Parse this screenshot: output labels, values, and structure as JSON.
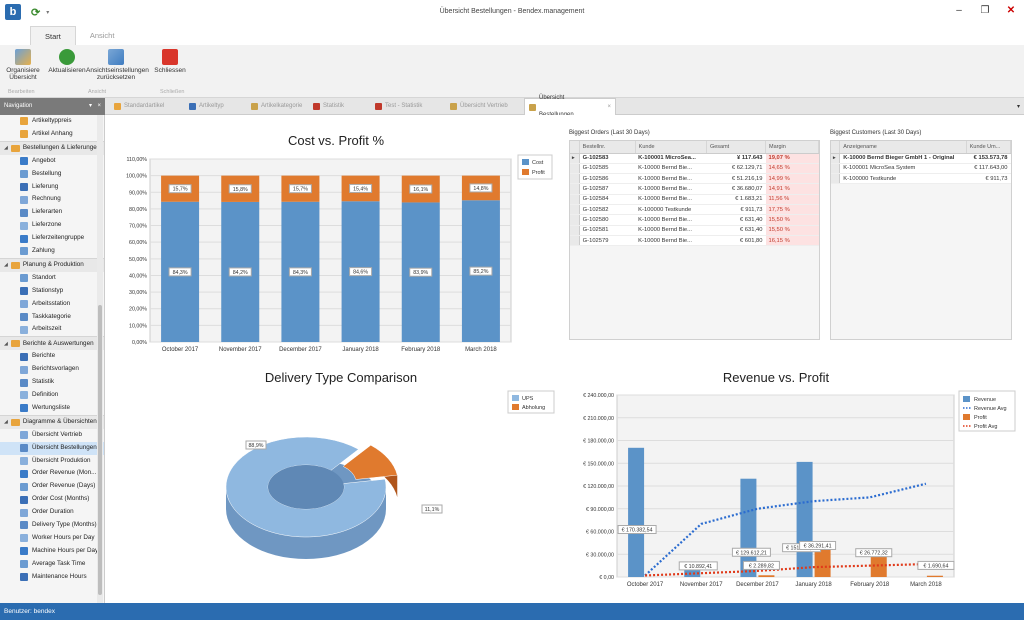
{
  "window": {
    "title": "Übersicht Bestellungen - Bendex.management"
  },
  "ribbon": {
    "tabs": [
      {
        "label": "Start"
      },
      {
        "label": "Ansicht"
      }
    ],
    "buttons": [
      {
        "label": "Organisiere\nÜbersicht"
      },
      {
        "label": "Aktualisieren"
      },
      {
        "label": "Ansichtseinstellungen\nzurücksetzen"
      },
      {
        "label": "Schliessen"
      }
    ],
    "groups": [
      {
        "label": "Bearbeiten"
      },
      {
        "label": "Ansicht"
      },
      {
        "label": "Schließen"
      }
    ]
  },
  "nav": {
    "header": "Navigation",
    "pin": "▾",
    "close": "×",
    "top_items": [
      {
        "label": "Artikeltyppreis"
      },
      {
        "label": "Artikel Anhang"
      }
    ],
    "groups": [
      {
        "label": "Bestellungen & Lieferungen",
        "items": [
          {
            "label": "Angebot"
          },
          {
            "label": "Bestellung"
          },
          {
            "label": "Lieferung"
          },
          {
            "label": "Rechnung"
          },
          {
            "label": "Lieferarten"
          },
          {
            "label": "Lieferzone"
          },
          {
            "label": "Lieferzeitengruppe"
          },
          {
            "label": "Zahlung"
          }
        ]
      },
      {
        "label": "Planung & Produktion",
        "items": [
          {
            "label": "Standort"
          },
          {
            "label": "Stationstyp"
          },
          {
            "label": "Arbeitsstation"
          },
          {
            "label": "Taskkategorie"
          },
          {
            "label": "Arbeitszeit"
          }
        ]
      },
      {
        "label": "Berichte & Auswertungen",
        "items": [
          {
            "label": "Berichte"
          },
          {
            "label": "Berichtsvorlagen"
          },
          {
            "label": "Statistik"
          },
          {
            "label": "Definition"
          },
          {
            "label": "Wertungsliste"
          }
        ]
      },
      {
        "label": "Diagramme & Übersichten",
        "items": [
          {
            "label": "Übersicht Vertrieb"
          },
          {
            "label": "Übersicht Bestellungen",
            "selected": true
          },
          {
            "label": "Übersicht Produktion"
          },
          {
            "label": "Order Revenue (Mon..."
          },
          {
            "label": "Order Revenue (Days)"
          },
          {
            "label": "Order Cost (Months)"
          },
          {
            "label": "Order Duration"
          },
          {
            "label": "Delivery Type (Months)"
          },
          {
            "label": "Worker Hours per Day"
          },
          {
            "label": "Machine Hours per Day"
          },
          {
            "label": "Average Task Time"
          },
          {
            "label": "Maintenance Hours"
          }
        ]
      }
    ]
  },
  "doc_tabs": [
    {
      "label": "Standardartikel",
      "color": "#e8a43c"
    },
    {
      "label": "Artikeltyp",
      "color": "#3b6fb6"
    },
    {
      "label": "Artikelkategorie",
      "color": "#c9a24b"
    },
    {
      "label": "Statistik",
      "color": "#c0392b"
    },
    {
      "label": "Test - Statistik",
      "color": "#c0392b"
    },
    {
      "label": "Übersicht Vertrieb",
      "color": "#c9a24b"
    },
    {
      "label": "Übersicht Bestellungen",
      "color": "#c9a24b",
      "active": true,
      "close": "×"
    }
  ],
  "status": {
    "user": "Benutzer: bendex"
  },
  "chart_data": [
    {
      "type": "bar",
      "title": "Cost vs. Profit %",
      "categories": [
        "October 2017",
        "November 2017",
        "December 2017",
        "January 2018",
        "February 2018",
        "March 2018"
      ],
      "series": [
        {
          "name": "Cost",
          "values": [
            84.3,
            84.2,
            84.3,
            84.6,
            83.9,
            85.2
          ],
          "labels": [
            "84,3%",
            "84,2%",
            "84,3%",
            "84,6%",
            "83,9%",
            "85,2%"
          ],
          "color": "#5b93c8"
        },
        {
          "name": "Profit",
          "values": [
            15.7,
            15.8,
            15.7,
            15.4,
            16.1,
            14.8
          ],
          "labels": [
            "15,7%",
            "15,8%",
            "15,7%",
            "15,4%",
            "16,1%",
            "14,8%"
          ],
          "color": "#e07a2e"
        }
      ],
      "ylim": [
        0,
        110
      ],
      "yticks": [
        "0,00%",
        "10,00%",
        "20,00%",
        "30,00%",
        "40,00%",
        "50,00%",
        "60,00%",
        "70,00%",
        "80,00%",
        "90,00%",
        "100,00%",
        "110,00%"
      ],
      "legend": "top-right"
    },
    {
      "type": "pie",
      "title": "Delivery Type Comparison",
      "series": [
        {
          "name": "UPS",
          "values": [
            88.9
          ],
          "labels": [
            "88,9%"
          ],
          "color": "#8fb8e0"
        },
        {
          "name": "Abholung",
          "values": [
            11.1
          ],
          "labels": [
            "11,1%"
          ],
          "color": "#e07a2e"
        }
      ],
      "legend": "top-right"
    },
    {
      "type": "bar",
      "title": "Revenue vs. Profit",
      "categories": [
        "October 2017",
        "November 2017",
        "December 2017",
        "January 2018",
        "February 2018",
        "March 2018"
      ],
      "series": [
        {
          "name": "Revenue",
          "values": [
            170382.54,
            10892.41,
            129612.21,
            151799.18,
            0,
            0
          ],
          "labels": [
            "€ 170.382,54",
            "€ 10.892,41",
            "€ 129.612,21",
            "€ 151.799,18",
            "",
            ""
          ],
          "color": "#5b93c8"
        },
        {
          "name": "Revenue Avg",
          "type": "line",
          "values": [
            2000,
            70000,
            90000,
            100000,
            105000,
            123000
          ],
          "color": "#2b6cd0"
        },
        {
          "name": "Profit",
          "values": [
            0,
            0,
            2289.82,
            36291.41,
            26772.32,
            1690.64
          ],
          "labels": [
            "",
            "",
            "€ 2.289,82",
            "€ 36.291,41",
            "€ 26.772,32",
            "€ 1.690,64"
          ],
          "color": "#e07a2e"
        },
        {
          "name": "Profit Avg",
          "type": "line",
          "values": [
            2000,
            5000,
            8000,
            13000,
            15000,
            17000
          ],
          "color": "#e03a1a"
        }
      ],
      "ylim": [
        0,
        240000
      ],
      "yticks": [
        "€ 0,00",
        "€ 30.000,00",
        "€ 60.000,00",
        "€ 90.000,00",
        "€ 120.000,00",
        "€ 150.000,00",
        "€ 180.000,00",
        "€ 210.000,00",
        "€ 240.000,00"
      ],
      "legend": "top-right"
    }
  ],
  "biggest_orders": {
    "title": "Biggest Orders (Last 30 Days)",
    "columns": [
      "Bestellnr.",
      "Kunde",
      "Gesamt",
      "Margin"
    ],
    "indicator": "▸",
    "rows": [
      [
        "G-102583",
        "K-100001 MicroSea...",
        "¥ 117.643",
        "19,07 %"
      ],
      [
        "G-102585",
        "K-10000 Bernd Bie...",
        "€ 62.129,71",
        "14,65 %"
      ],
      [
        "G-102586",
        "K-10000 Bernd Bie...",
        "€ 51.216,19",
        "14,99 %"
      ],
      [
        "G-102587",
        "K-10000 Bernd Bie...",
        "€ 36.680,07",
        "14,91 %"
      ],
      [
        "G-102584",
        "K-10000 Bernd Bie...",
        "€ 1.683,21",
        "11,56 %"
      ],
      [
        "G-102582",
        "K-100000 Testkunde",
        "€ 911,73",
        "17,75 %"
      ],
      [
        "G-102580",
        "K-10000 Bernd Bie...",
        "€ 631,40",
        "15,50 %"
      ],
      [
        "G-102581",
        "K-10000 Bernd Bie...",
        "€ 631,40",
        "15,50 %"
      ],
      [
        "G-102579",
        "K-10000 Bernd Bie...",
        "€ 601,80",
        "16,15 %"
      ]
    ]
  },
  "biggest_customers": {
    "title": "Biggest Customers (Last 30 Days)",
    "columns": [
      "Anzeigename",
      "Kunde Um..."
    ],
    "indicator": "▸",
    "rows": [
      [
        "K-10000 Bernd Bieger GmbH 1 - Original",
        "€ 153.573,78"
      ],
      [
        "K-100001 MicroSea System",
        "€ 117.643,00"
      ],
      [
        "K-100000 Testkunde",
        "€ 911,73"
      ]
    ]
  }
}
